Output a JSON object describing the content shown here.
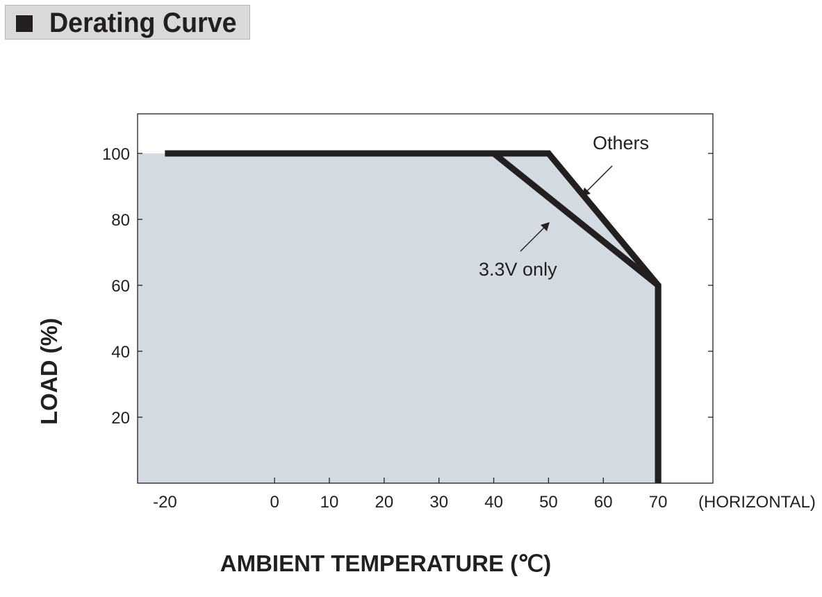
{
  "header": {
    "title": "Derating Curve"
  },
  "chart_data": {
    "type": "line",
    "title": "Derating Curve",
    "xlabel": "AMBIENT TEMPERATURE (℃)",
    "ylabel": "LOAD (%)",
    "x_note": "(HORIZONTAL)",
    "xlim": [
      -25,
      80
    ],
    "ylim": [
      0,
      112
    ],
    "x_ticks": [
      -20,
      0,
      10,
      20,
      30,
      40,
      50,
      60,
      70
    ],
    "y_ticks": [
      20,
      40,
      60,
      80,
      100
    ],
    "grid": false,
    "fill_color": "#d4dae1",
    "line_color": "#231f20",
    "series": [
      {
        "name": "Others",
        "points": [
          [
            -20,
            100
          ],
          [
            50,
            100
          ],
          [
            70,
            60
          ],
          [
            70,
            0
          ]
        ]
      },
      {
        "name": "3.3V only",
        "points": [
          [
            -20,
            100
          ],
          [
            40,
            100
          ],
          [
            70,
            60
          ],
          [
            70,
            0
          ]
        ]
      }
    ]
  }
}
